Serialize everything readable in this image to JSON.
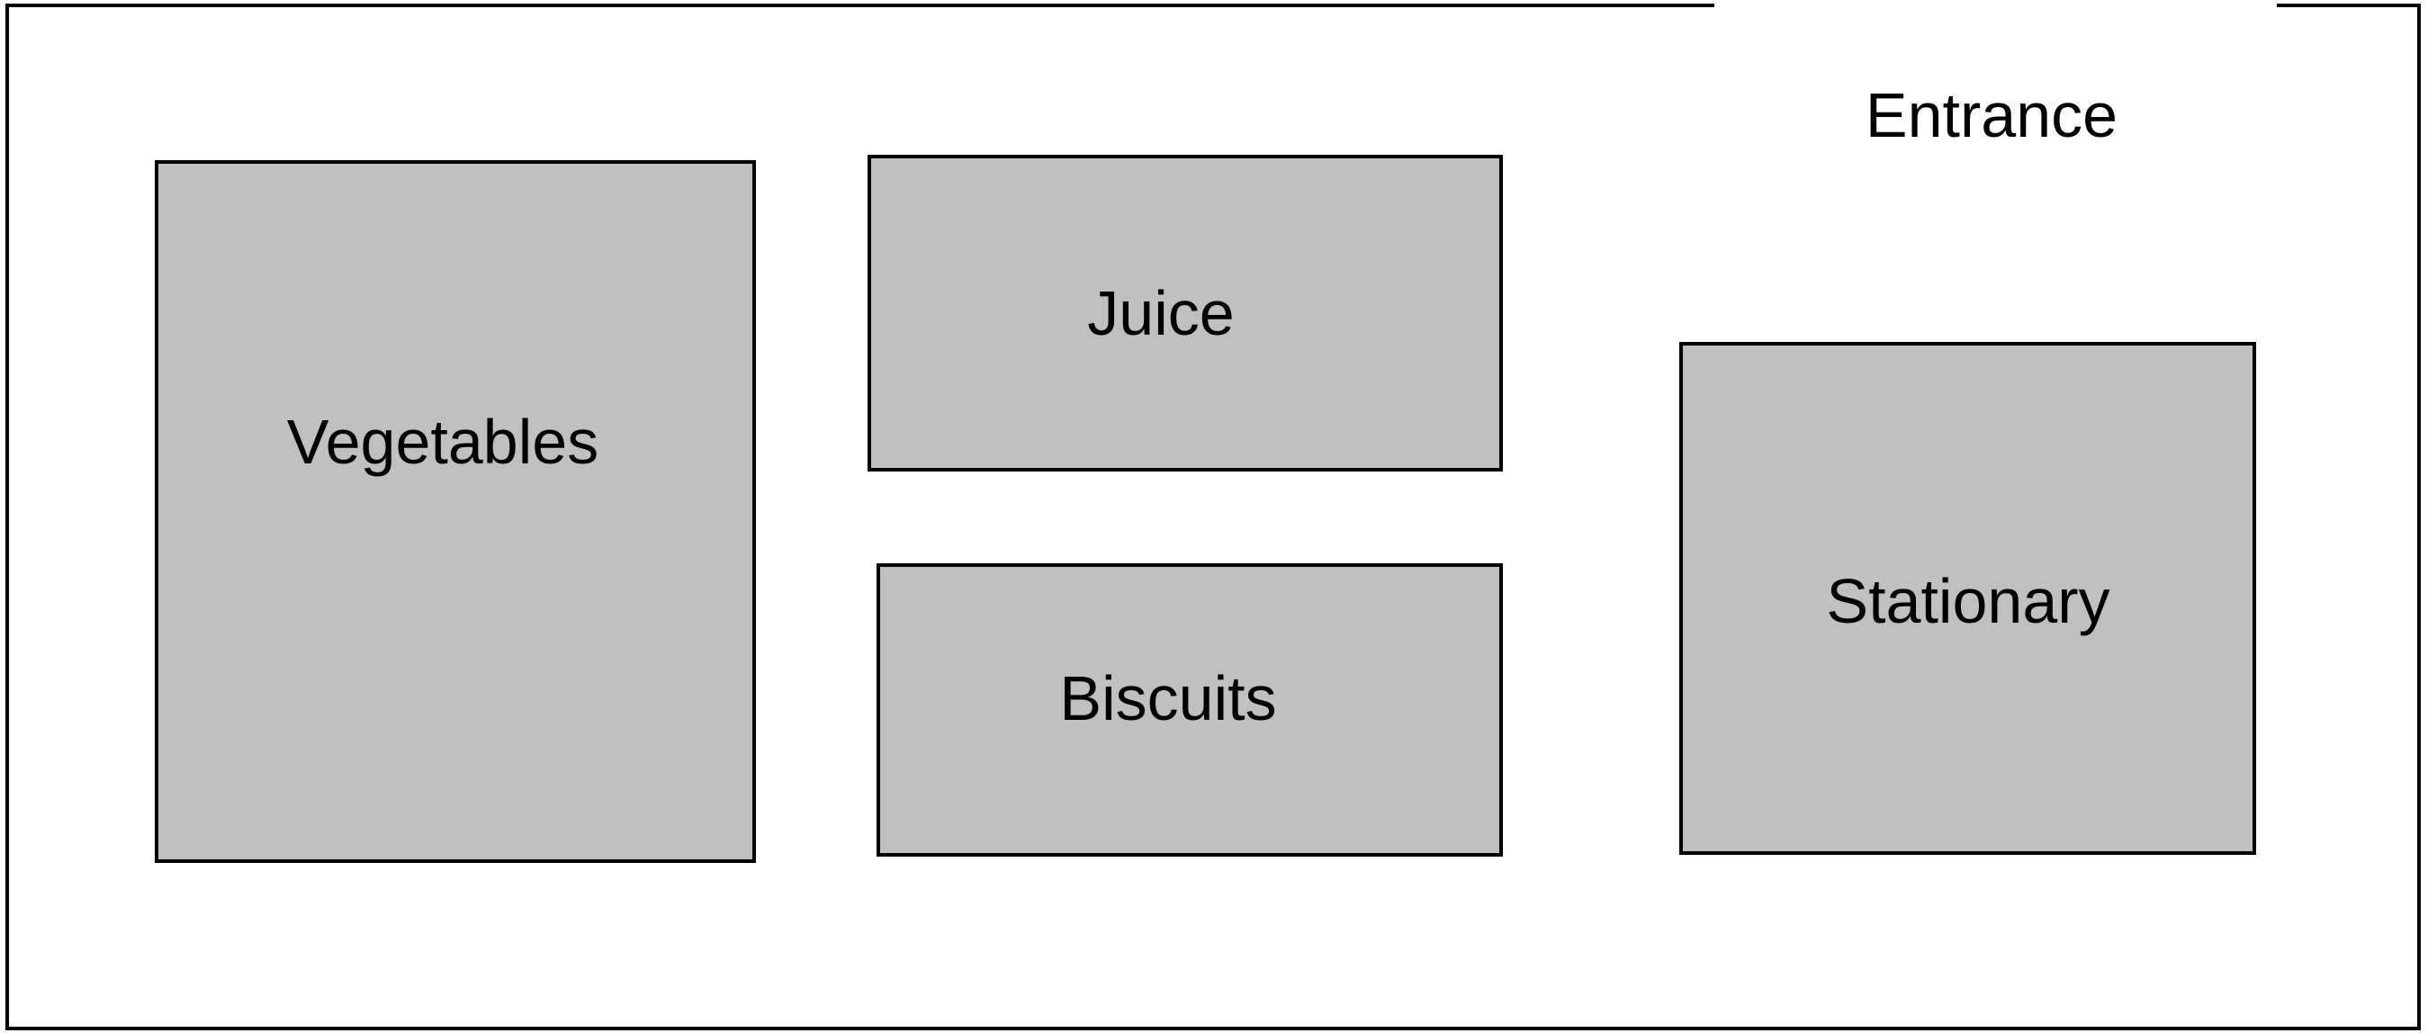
{
  "diagram": {
    "entrance_label": "Entrance",
    "sections": {
      "vegetables": "Vegetables",
      "juice": "Juice",
      "biscuits": "Biscuits",
      "stationary": "Stationary"
    }
  }
}
